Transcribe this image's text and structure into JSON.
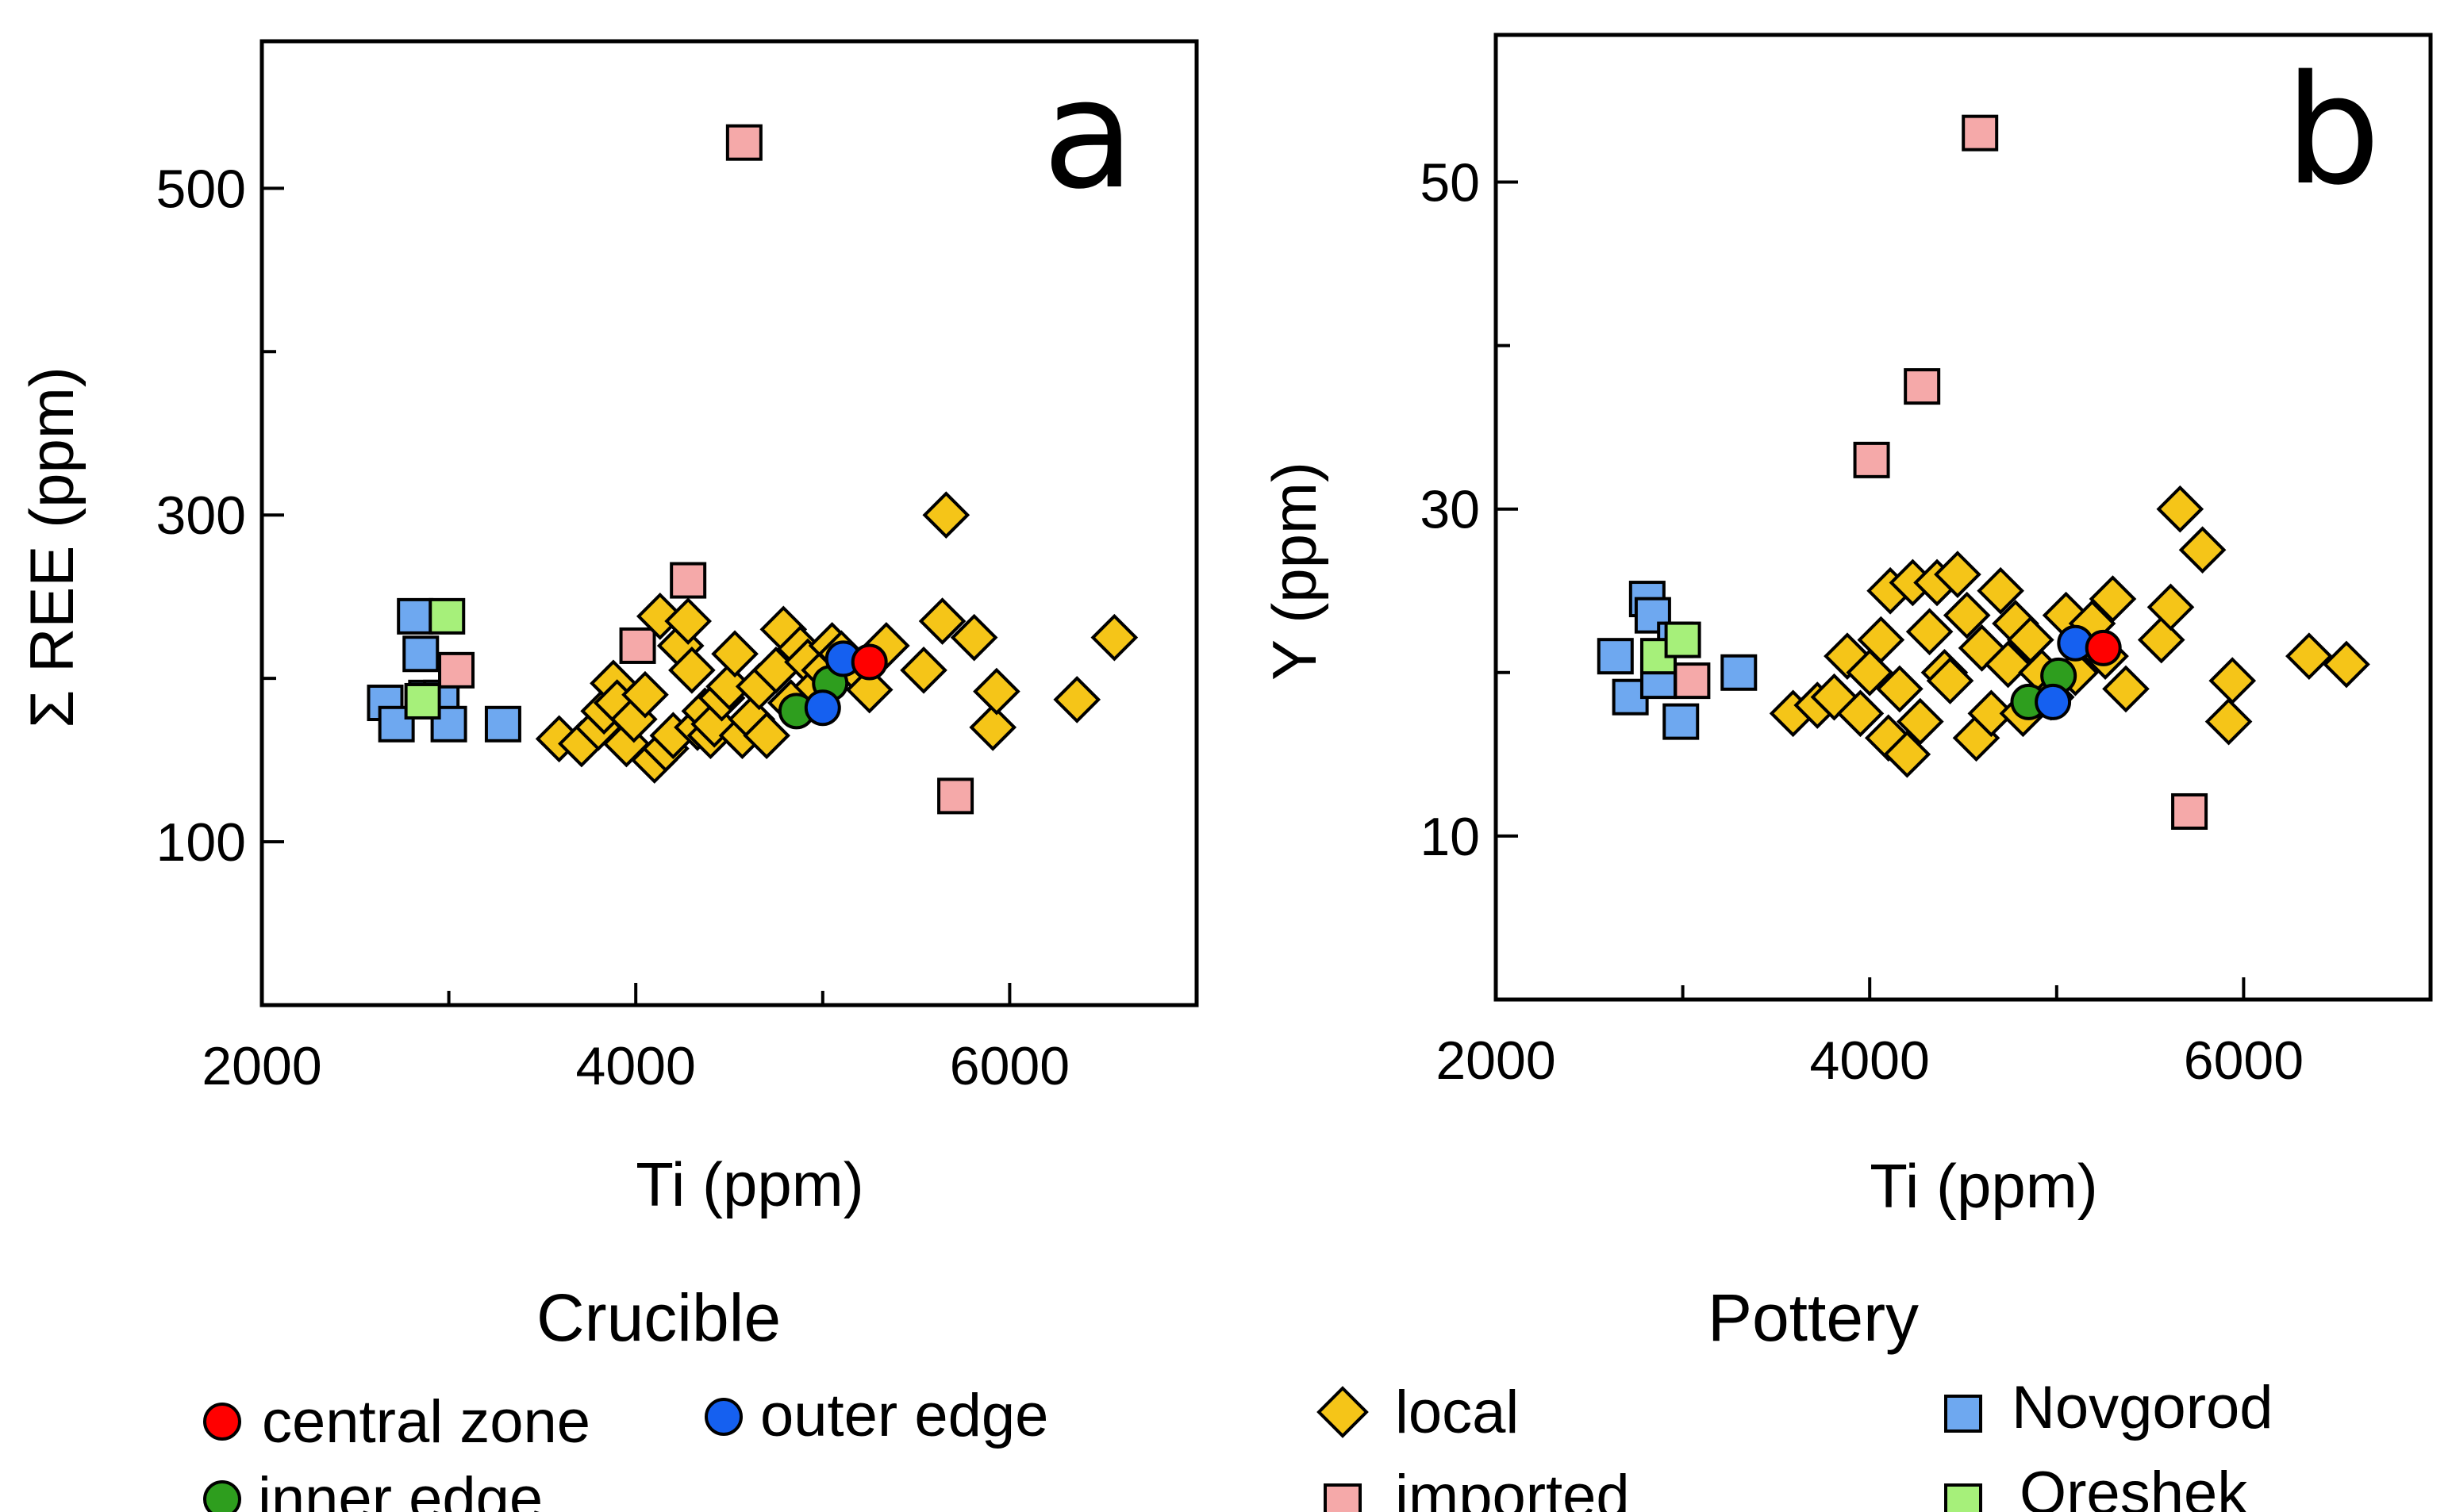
{
  "colors": {
    "local": "#f5c518",
    "imported": "#f5a9a9",
    "novgorod": "#6ea8f0",
    "oreshek": "#a6f07a",
    "central_zone": "#ff0000",
    "outer_edge": "#1560f0",
    "inner_edge": "#2e9e1e"
  },
  "legend": {
    "crucible_title": "Crucible",
    "pottery_title": "Pottery",
    "items": {
      "central_zone": "central zone",
      "outer_edge": "outer edge",
      "inner_edge": "inner edge",
      "local": "local",
      "imported": "imported",
      "novgorod": "Novgorod",
      "oreshek": "Oreshek"
    }
  },
  "chart_data": [
    {
      "type": "scatter",
      "panel": "a",
      "xlabel": "Ti (ppm)",
      "ylabel": "Σ REE (ppm)",
      "xlim": [
        2000,
        7000
      ],
      "ylim": [
        0,
        590
      ],
      "xticks": [
        2000,
        4000,
        6000
      ],
      "xticks_minor": [
        3000,
        5000
      ],
      "yticks": [
        100,
        300,
        500
      ],
      "yticks_minor": [
        200,
        400
      ],
      "series": [
        {
          "name": "local",
          "marker": "diamond",
          "x": [
            3590,
            3710,
            3800,
            3830,
            3880,
            3900,
            3950,
            3990,
            4050,
            4100,
            4130,
            4160,
            4200,
            4240,
            4280,
            4300,
            4330,
            4370,
            4400,
            4420,
            4460,
            4500,
            4530,
            4570,
            4620,
            4660,
            4700,
            4750,
            4790,
            4830,
            4880,
            4920,
            4970,
            5010,
            5050,
            5100,
            5180,
            5250,
            5340,
            5540,
            5640,
            5660,
            5810,
            5910,
            5930,
            6360,
            6560
          ],
          "y": [
            163,
            160,
            170,
            180,
            197,
            185,
            160,
            175,
            190,
            150,
            238,
            157,
            165,
            220,
            235,
            205,
            170,
            180,
            165,
            172,
            188,
            195,
            215,
            165,
            175,
            195,
            165,
            205,
            230,
            185,
            218,
            210,
            195,
            205,
            220,
            215,
            205,
            193,
            220,
            205,
            235,
            300,
            225,
            170,
            192,
            187,
            225
          ]
        },
        {
          "name": "imported",
          "marker": "square",
          "x": [
            4580,
            4280,
            4010,
            3040,
            5710
          ],
          "y": [
            528,
            260,
            220,
            205,
            128
          ]
        },
        {
          "name": "Novgorod",
          "marker": "square",
          "x": [
            2660,
            2720,
            2820,
            2850,
            2880,
            2960,
            3000,
            3290
          ],
          "y": [
            185,
            172,
            238,
            215,
            188,
            188,
            172,
            172
          ]
        },
        {
          "name": "Oreshek",
          "marker": "square",
          "x": [
            2990,
            2860
          ],
          "y": [
            238,
            186
          ]
        },
        {
          "name": "central zone",
          "marker": "circle",
          "x": [
            5250
          ],
          "y": [
            210
          ]
        },
        {
          "name": "outer edge",
          "marker": "circle",
          "x": [
            5110,
            5000
          ],
          "y": [
            212,
            182
          ]
        },
        {
          "name": "inner edge",
          "marker": "circle",
          "x": [
            5040,
            4860
          ],
          "y": [
            197,
            180
          ]
        }
      ]
    },
    {
      "type": "scatter",
      "panel": "b",
      "xlabel": "Ti (ppm)",
      "ylabel": "Y (ppm)",
      "xlim": [
        2000,
        7000
      ],
      "ylim": [
        0,
        59
      ],
      "xticks": [
        2000,
        4000,
        6000
      ],
      "xticks_minor": [
        3000,
        5000
      ],
      "yticks": [
        10,
        30,
        50
      ],
      "yticks_minor": [
        20,
        40
      ],
      "series": [
        {
          "name": "local",
          "marker": "diamond",
          "x": [
            3590,
            3720,
            3810,
            3880,
            3950,
            4000,
            4060,
            4100,
            4110,
            4160,
            4200,
            4230,
            4270,
            4320,
            4360,
            4400,
            4430,
            4470,
            4520,
            4570,
            4600,
            4650,
            4700,
            4740,
            4780,
            4820,
            4860,
            4920,
            4970,
            5050,
            5100,
            5190,
            5260,
            5300,
            5370,
            5560,
            5610,
            5660,
            5780,
            5920,
            5940,
            6350,
            6550
          ],
          "y": [
            17.5,
            18,
            18.5,
            21,
            17.5,
            20,
            22,
            16,
            25,
            19,
            15,
            25.5,
            17,
            22.5,
            25.5,
            20,
            19.5,
            26,
            23.5,
            16,
            21.5,
            17.5,
            25,
            20.5,
            23,
            17.5,
            22,
            20,
            18.5,
            23.5,
            20,
            23,
            21,
            24.5,
            19,
            22,
            24,
            30,
            27.5,
            17,
            19.5,
            21,
            20.5
          ]
        },
        {
          "name": "imported",
          "marker": "square",
          "x": [
            4590,
            4280,
            4010,
            3050,
            5710
          ],
          "y": [
            53,
            37.5,
            33,
            19.5,
            11.5
          ]
        },
        {
          "name": "Novgorod",
          "marker": "square",
          "x": [
            2640,
            2720,
            2810,
            2840,
            2870,
            2960,
            2990,
            3300
          ],
          "y": [
            21,
            18.5,
            24.5,
            23.5,
            19.5,
            22,
            17,
            20
          ]
        },
        {
          "name": "Oreshek",
          "marker": "square",
          "x": [
            2870,
            3000
          ],
          "y": [
            21,
            22
          ]
        },
        {
          "name": "central zone",
          "marker": "circle",
          "x": [
            5250
          ],
          "y": [
            21.5
          ]
        },
        {
          "name": "outer edge",
          "marker": "circle",
          "x": [
            5100,
            4980
          ],
          "y": [
            21.8,
            18.2
          ]
        },
        {
          "name": "inner edge",
          "marker": "circle",
          "x": [
            5010,
            4850
          ],
          "y": [
            19.8,
            18.2
          ]
        }
      ]
    }
  ],
  "panels": [
    {
      "letter": "a",
      "xlabel": "Ti (ppm)",
      "ylabel": "Σ REE (ppm)"
    },
    {
      "letter": "b",
      "xlabel": "Ti (ppm)",
      "ylabel": "Y (ppm)"
    }
  ]
}
